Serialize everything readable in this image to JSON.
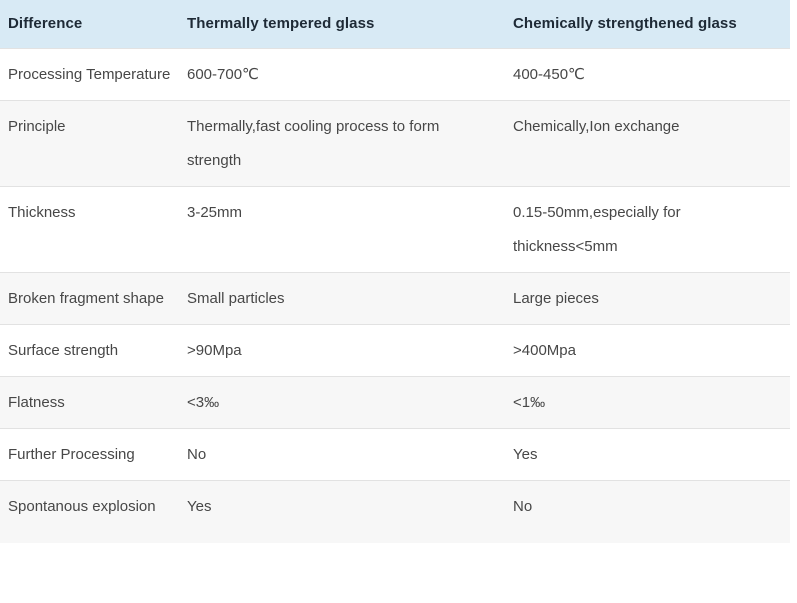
{
  "table": {
    "columns": {
      "difference": "Difference",
      "thermal": "Thermally tempered glass",
      "chemical": "Chemically strengthened glass"
    },
    "rows": [
      {
        "label": "Processing Temperature",
        "thermal": "600-700℃",
        "chemical": "400-450℃"
      },
      {
        "label": "Principle",
        "thermal": "Thermally,fast cooling process to form strength",
        "chemical": "Chemically,Ion exchange"
      },
      {
        "label": "Thickness",
        "thermal": "3-25mm",
        "chemical": "0.15-50mm,especially for thickness<5mm"
      },
      {
        "label": "Broken fragment shape",
        "thermal": "Small particles",
        "chemical": "Large pieces"
      },
      {
        "label": "Surface strength",
        "thermal": ">90Mpa",
        "chemical": ">400Mpa"
      },
      {
        "label": "Flatness",
        "thermal": "<3‰",
        "chemical": "<1‰"
      },
      {
        "label": "Further Processing",
        "thermal": "No",
        "chemical": "Yes"
      },
      {
        "label": "Spontanous explosion",
        "thermal": "Yes",
        "chemical": "No"
      }
    ],
    "colors": {
      "header_bg": "#d8eaf5",
      "row_bg": "#ffffff",
      "row_alt_bg": "#f7f7f7",
      "border": "#e2e2e2",
      "header_text": "#1e2a36",
      "body_text": "#474747"
    }
  }
}
